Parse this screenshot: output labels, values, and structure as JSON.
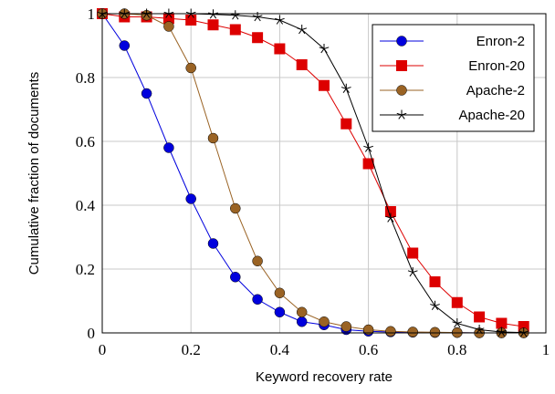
{
  "chart_data": {
    "type": "line",
    "title": "",
    "xlabel": "Keyword recovery rate",
    "ylabel": "Cumulative fraction of documents",
    "xlim": [
      0,
      1
    ],
    "ylim": [
      0,
      1
    ],
    "x_ticks": [
      "0",
      "0.2",
      "0.4",
      "0.6",
      "0.8",
      "1"
    ],
    "y_ticks": [
      "0",
      "0.2",
      "0.4",
      "0.6",
      "0.8",
      "1"
    ],
    "grid": true,
    "legend_position": "top-right",
    "x": [
      0,
      0.05,
      0.1,
      0.15,
      0.2,
      0.25,
      0.3,
      0.35,
      0.4,
      0.45,
      0.5,
      0.55,
      0.6,
      0.65,
      0.7,
      0.75,
      0.8,
      0.85,
      0.9,
      0.95
    ],
    "series": [
      {
        "name": "Enron-2",
        "color": "#0000dd",
        "marker": "circle",
        "values": [
          1.0,
          0.9,
          0.75,
          0.58,
          0.42,
          0.28,
          0.175,
          0.105,
          0.065,
          0.035,
          0.025,
          0.01,
          0.005,
          0.003,
          0.002,
          0.001,
          0.001,
          0.0,
          0.0,
          0.0
        ]
      },
      {
        "name": "Enron-20",
        "color": "#dd0000",
        "marker": "square",
        "values": [
          1.0,
          0.99,
          0.99,
          0.985,
          0.98,
          0.965,
          0.95,
          0.925,
          0.89,
          0.84,
          0.775,
          0.655,
          0.53,
          0.38,
          0.25,
          0.16,
          0.095,
          0.05,
          0.03,
          0.02
        ]
      },
      {
        "name": "Apache-2",
        "color": "#9a6324",
        "marker": "circle",
        "values": [
          1.0,
          1.0,
          0.995,
          0.96,
          0.83,
          0.61,
          0.39,
          0.225,
          0.125,
          0.065,
          0.035,
          0.02,
          0.01,
          0.005,
          0.003,
          0.002,
          0.001,
          0.0,
          0.0,
          0.0
        ]
      },
      {
        "name": "Apache-20",
        "color": "#000000",
        "marker": "star",
        "values": [
          1.0,
          1.0,
          1.0,
          1.0,
          1.0,
          0.998,
          0.995,
          0.99,
          0.98,
          0.95,
          0.89,
          0.765,
          0.58,
          0.36,
          0.19,
          0.085,
          0.03,
          0.01,
          0.003,
          0.001
        ]
      }
    ]
  }
}
